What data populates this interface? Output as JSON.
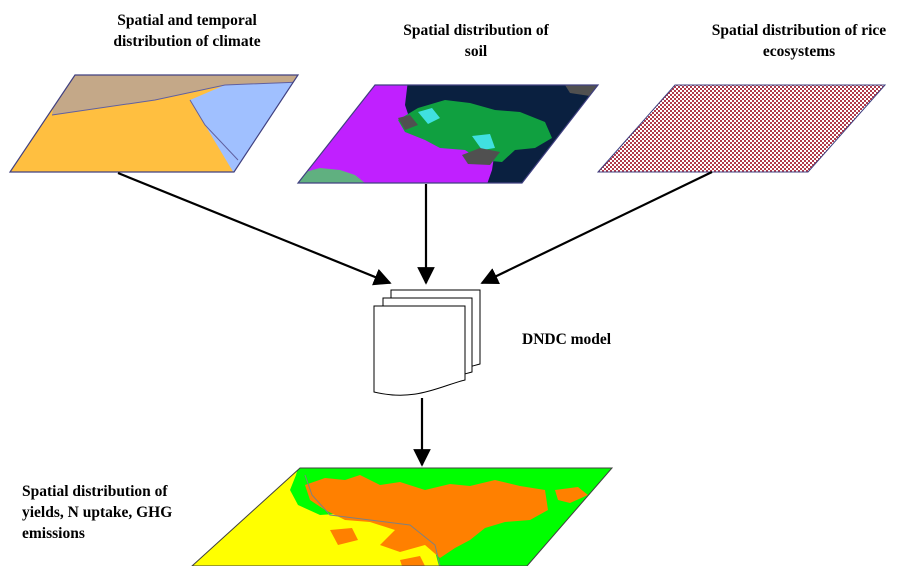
{
  "labels": {
    "climate": [
      "Spatial and temporal",
      "distribution of climate"
    ],
    "soil": [
      "Spatial distribution of",
      "soil"
    ],
    "rice": [
      "Spatial distribution of rice",
      "ecosystems"
    ],
    "model": "DNDC model",
    "output": [
      "Spatial distribution of",
      "yields, N uptake, GHG",
      "emissions"
    ]
  },
  "colors": {
    "climate_top": "#c4a888",
    "climate_left": "#ffbf40",
    "climate_right": "#a0c0ff",
    "soil_purple": "#c020ff",
    "soil_navy": "#0a2040",
    "soil_green": "#10a040",
    "soil_cyan": "#40e0e0",
    "soil_gray": "#505050",
    "soil_sage": "#60b080",
    "rice_fill": "#c05060",
    "out_yellow": "#ffff00",
    "out_green": "#00ff00",
    "out_orange": "#ff8000"
  }
}
